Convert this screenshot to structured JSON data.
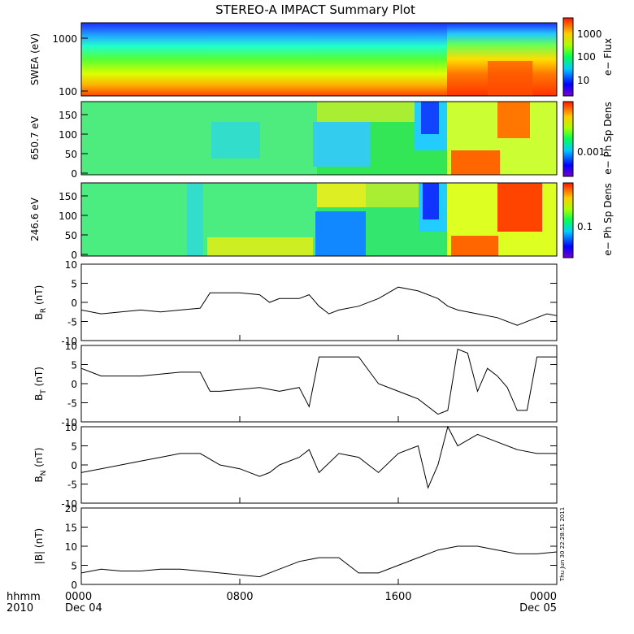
{
  "title": "STEREO-A IMPACT Summary Plot",
  "time_axis": {
    "label_line1": "hhmm",
    "label_line2": "2010",
    "ticks": [
      {
        "hours": 0,
        "line1": "0000",
        "line2": "Dec 04"
      },
      {
        "hours": 8,
        "line1": "0800",
        "line2": ""
      },
      {
        "hours": 16,
        "line1": "1600",
        "line2": ""
      },
      {
        "hours": 24,
        "line1": "0000",
        "line2": "Dec 05"
      }
    ]
  },
  "timestamp": "Thu Jun 30 22:28:51 2011",
  "spectrograms": [
    {
      "ylabel": "SWEA (eV)",
      "yticks": [
        "1000",
        "100"
      ],
      "colorbar_label": "e− Flux",
      "colorbar_ticks": [
        "1000",
        "100",
        "10"
      ]
    },
    {
      "ylabel": "650.7 eV",
      "yticks": [
        "150",
        "100",
        "50",
        "0"
      ],
      "colorbar_label": "e− Ph Sp Dens",
      "colorbar_ticks": [
        "0.001"
      ]
    },
    {
      "ylabel": "246.6 eV",
      "yticks": [
        "150",
        "100",
        "50",
        "0"
      ],
      "colorbar_label": "e− Ph Sp Dens",
      "colorbar_ticks": [
        "0.1"
      ]
    }
  ],
  "chart_data": [
    {
      "type": "line",
      "ylabel_main": "B",
      "ylabel_sub": "R",
      "ylabel_unit": " (nT)",
      "ylim": [
        -10,
        10
      ],
      "yticks": [
        -10,
        -5,
        0,
        5,
        10
      ],
      "x": [
        0,
        1,
        2,
        3,
        4,
        5,
        6,
        6.5,
        7,
        8,
        9,
        9.5,
        10,
        11,
        11.5,
        12,
        12.5,
        13,
        14,
        15,
        16,
        17,
        18,
        18.5,
        19,
        20,
        21,
        22,
        23,
        23.5,
        24
      ],
      "y": [
        -2,
        -3,
        -2.5,
        -2,
        -2.5,
        -2,
        -1.5,
        2.5,
        2.5,
        2.5,
        2,
        0,
        1,
        1,
        2,
        -1,
        -3,
        -2,
        -1,
        1,
        4,
        3,
        1,
        -1,
        -2,
        -3,
        -4,
        -6,
        -4,
        -3,
        -3.5
      ]
    },
    {
      "type": "line",
      "ylabel_main": "B",
      "ylabel_sub": "T",
      "ylabel_unit": " (nT)",
      "ylim": [
        -10,
        10
      ],
      "yticks": [
        -10,
        -5,
        0,
        5,
        10
      ],
      "x": [
        0,
        0.5,
        1,
        2,
        3,
        4,
        5,
        6,
        6.5,
        7,
        8,
        9,
        10,
        11,
        11.5,
        12,
        13,
        14,
        15,
        16,
        17,
        18,
        18.5,
        19,
        19.5,
        20,
        20.5,
        21,
        21.5,
        22,
        22.5,
        23,
        24
      ],
      "y": [
        4,
        3,
        2,
        2,
        2,
        2.5,
        3,
        3,
        -2,
        -2,
        -1.5,
        -1,
        -2,
        -1,
        -6,
        7,
        7,
        7,
        0,
        -2,
        -4,
        -8,
        -7,
        9,
        8,
        -2,
        4,
        2,
        -1,
        -7,
        -7,
        7,
        7
      ]
    },
    {
      "type": "line",
      "ylabel_main": "B",
      "ylabel_sub": "N",
      "ylabel_unit": " (nT)",
      "ylim": [
        -10,
        10
      ],
      "yticks": [
        -10,
        -5,
        0,
        5,
        10
      ],
      "x": [
        0,
        1,
        2,
        3,
        4,
        5,
        6,
        7,
        8,
        9,
        9.5,
        10,
        11,
        11.5,
        12,
        13,
        14,
        15,
        16,
        17,
        17.5,
        18,
        18.5,
        19,
        20,
        21,
        22,
        23,
        24
      ],
      "y": [
        -2,
        -1,
        0,
        1,
        2,
        3,
        3,
        0,
        -1,
        -3,
        -2,
        0,
        2,
        4,
        -2,
        3,
        2,
        -2,
        3,
        5,
        -6,
        0,
        10,
        5,
        8,
        6,
        4,
        3,
        3
      ]
    },
    {
      "type": "line",
      "ylabel_main": "|B|",
      "ylabel_sub": "",
      "ylabel_unit": " (nT)",
      "ylim": [
        0,
        20
      ],
      "yticks": [
        0,
        5,
        10,
        15,
        20
      ],
      "x": [
        0,
        1,
        2,
        3,
        4,
        5,
        6,
        7,
        8,
        9,
        10,
        11,
        12,
        13,
        14,
        15,
        16,
        17,
        18,
        19,
        20,
        21,
        22,
        23,
        24
      ],
      "y": [
        3,
        4,
        3.5,
        3.5,
        4,
        4,
        3.5,
        3,
        2.5,
        2,
        4,
        6,
        7,
        7,
        3,
        3,
        5,
        7,
        9,
        10,
        10,
        9,
        8,
        8,
        8.5
      ]
    }
  ]
}
